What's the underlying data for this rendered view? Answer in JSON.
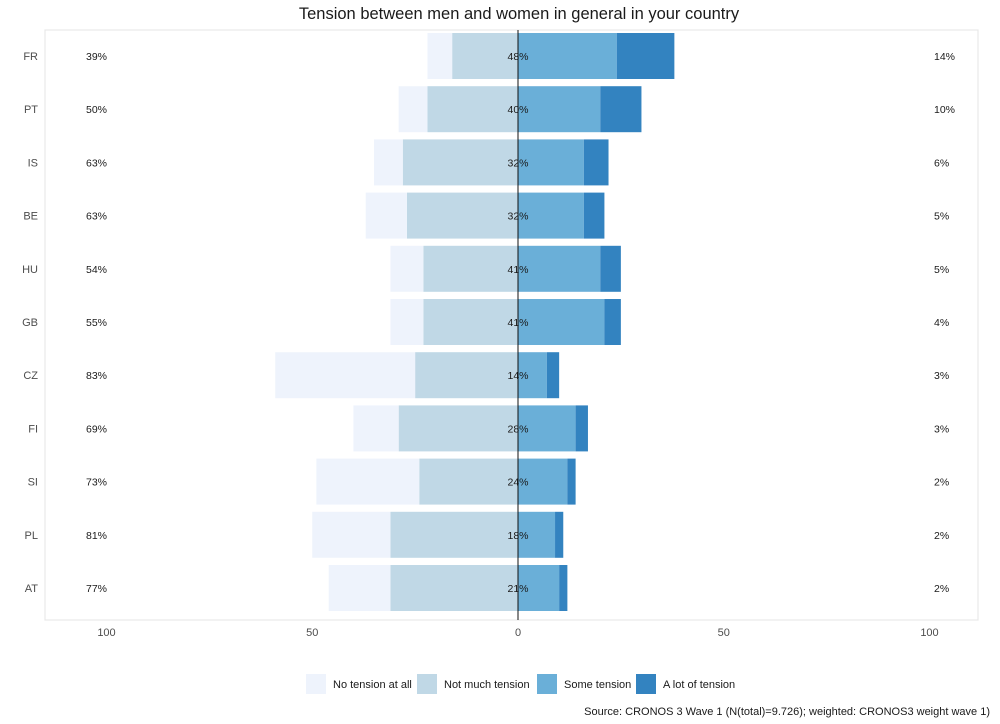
{
  "chart_data": {
    "type": "bar",
    "orientation": "horizontal-diverging",
    "title": "Tension between men and women in general in your country",
    "categories": [
      "FR",
      "PT",
      "IS",
      "BE",
      "HU",
      "GB",
      "CZ",
      "FI",
      "SI",
      "PL",
      "AT"
    ],
    "series": [
      {
        "name": "No tension at all",
        "color": "#eef3fc",
        "side": "negative",
        "values": [
          6,
          7,
          7,
          10,
          8,
          8,
          34,
          11,
          25,
          19,
          15
        ]
      },
      {
        "name": "Not much tension",
        "color": "#c0d8e6",
        "side": "negative",
        "values": [
          16,
          22,
          28,
          27,
          23,
          23,
          25,
          29,
          24,
          31,
          31
        ]
      },
      {
        "name": "Some tension",
        "color": "#6aafd8",
        "side": "positive",
        "values": [
          24,
          20,
          16,
          16,
          20,
          21,
          7,
          14,
          12,
          9,
          10
        ]
      },
      {
        "name": "A lot of tension",
        "color": "#3383c0",
        "side": "positive",
        "values": [
          14,
          10,
          6,
          5,
          5,
          4,
          3,
          3,
          2,
          2,
          2
        ]
      }
    ],
    "left_labels": [
      "39%",
      "50%",
      "63%",
      "63%",
      "54%",
      "55%",
      "83%",
      "69%",
      "73%",
      "81%",
      "77%"
    ],
    "center_labels": [
      "48%",
      "40%",
      "32%",
      "32%",
      "41%",
      "41%",
      "14%",
      "28%",
      "24%",
      "18%",
      "21%"
    ],
    "right_labels": [
      "14%",
      "10%",
      "6%",
      "5%",
      "5%",
      "4%",
      "3%",
      "3%",
      "2%",
      "2%",
      "2%"
    ],
    "x_ticks": [
      100,
      50,
      0,
      50,
      100
    ],
    "xlim": [
      -100,
      100
    ],
    "grid": false,
    "legend_position": "bottom",
    "source": "Source: CRONOS 3 Wave 1 (N(total)=9.726); weighted: CRONOS3 weight wave 1)"
  }
}
